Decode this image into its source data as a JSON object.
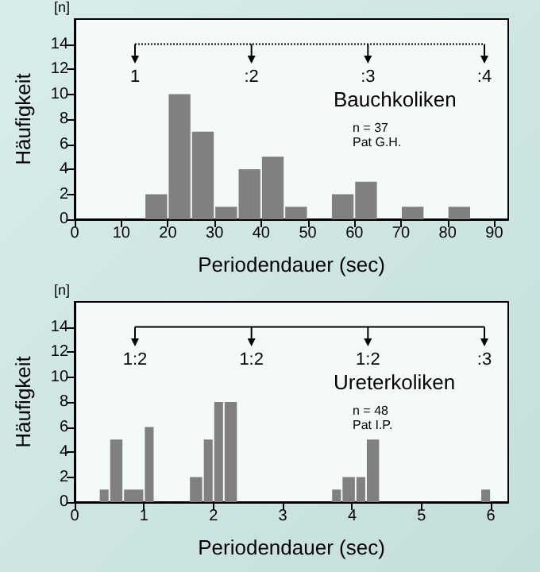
{
  "chart_data": [
    {
      "type": "histogram",
      "title": "Bauchkoliken",
      "subtitle": "n = 37\nPat G.H.",
      "bins": [
        15,
        20,
        25,
        30,
        35,
        40,
        45,
        50,
        55,
        60,
        65,
        70,
        75,
        80,
        85
      ],
      "values": [
        2,
        10,
        7,
        1,
        4,
        5,
        1,
        0,
        2,
        3,
        0,
        1,
        0,
        1
      ],
      "color": "#808080",
      "xlabel": "Periodendauer (sec)",
      "ylabel": "Häufigkeit",
      "xlim": [
        0,
        93
      ],
      "xticks": [
        0,
        10,
        20,
        30,
        40,
        50,
        60,
        70,
        80,
        90
      ],
      "ylim": [
        0,
        16
      ],
      "yticks": [
        0,
        2,
        4,
        6,
        8,
        10,
        12,
        14
      ],
      "grid": false,
      "annotations": [
        "[n]",
        "1",
        ":2",
        ":3",
        ":4"
      ],
      "ref_lines": [
        {
          "axis": "y",
          "value": 14,
          "line_style": "dotted"
        }
      ]
    },
    {
      "type": "histogram",
      "title": "Ureterkoliken",
      "subtitle": "n = 48\nPat I.P.",
      "bins": [
        0.35,
        0.5,
        0.7,
        1.0,
        1.15,
        1.65,
        1.85,
        2.0,
        2.15,
        2.35,
        3.7,
        3.85,
        4.05,
        4.2,
        4.4,
        5.85,
        6.0
      ],
      "values": [
        1,
        5,
        1,
        6,
        0,
        2,
        5,
        8,
        8,
        0,
        1,
        2,
        2,
        5,
        0,
        1
      ],
      "color": "#808080",
      "xlabel": "Periodendauer (sec)",
      "ylabel": "Häufigkeit",
      "xlim": [
        0,
        6.25
      ],
      "xticks": [
        0,
        1,
        2,
        3,
        4,
        5,
        6
      ],
      "ylim": [
        0,
        16
      ],
      "yticks": [
        0,
        2,
        4,
        6,
        8,
        10,
        12,
        14
      ],
      "grid": false,
      "annotations": [
        "[n]",
        "1:2",
        "1:2",
        "1:2",
        ":3"
      ],
      "ref_lines": [
        {
          "axis": "y",
          "value": 14,
          "line_style": "solid"
        }
      ]
    }
  ]
}
